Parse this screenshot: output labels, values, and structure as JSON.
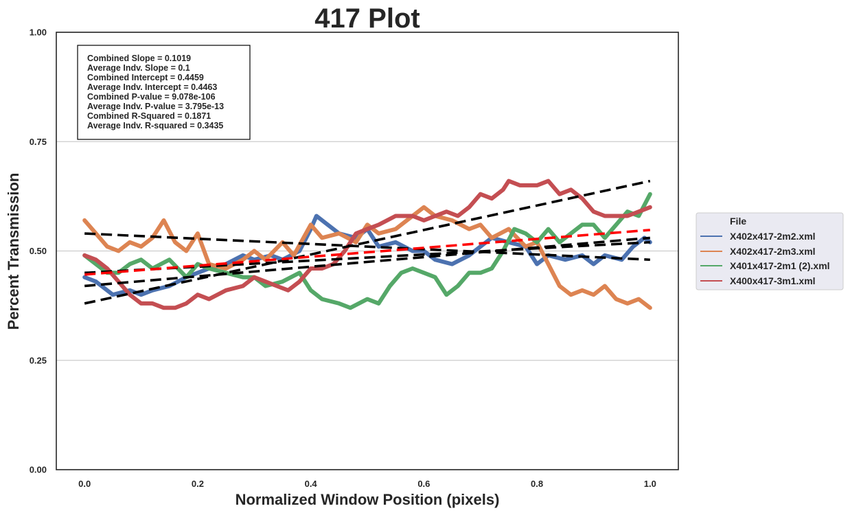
{
  "chart_data": {
    "type": "line",
    "title": "417 Plot",
    "xlabel": "Normalized Window Position (pixels)",
    "ylabel": "Percent Transmission",
    "xlim": [
      -0.05,
      1.05
    ],
    "ylim": [
      0.0,
      1.0
    ],
    "xticks": [
      "0.0",
      "0.2",
      "0.4",
      "0.6",
      "0.8",
      "1.0"
    ],
    "yticks": [
      "0.00",
      "0.25",
      "0.50",
      "0.75",
      "1.00"
    ],
    "grid": "horizontal",
    "legend": {
      "title": "File",
      "placement": "right"
    },
    "stats": [
      "Combined Slope = 0.1019",
      "Average Indv. Slope = 0.1",
      "Combined Intercept = 0.4459",
      "Average Indv. Intercept = 0.4463",
      "Combined P-value = 9.078e-106",
      "Average Indv. P-value = 3.795e-13",
      "Combined R-Squared = 0.1871",
      "Average Indv. R-squared = 0.3435"
    ],
    "series": [
      {
        "name": "X402x417-2m2.xml",
        "color": "#4c72b0",
        "x": [
          0.0,
          0.02,
          0.05,
          0.08,
          0.1,
          0.12,
          0.15,
          0.18,
          0.2,
          0.22,
          0.25,
          0.28,
          0.3,
          0.33,
          0.35,
          0.38,
          0.4,
          0.41,
          0.43,
          0.45,
          0.48,
          0.5,
          0.52,
          0.55,
          0.58,
          0.6,
          0.62,
          0.65,
          0.68,
          0.7,
          0.72,
          0.75,
          0.78,
          0.8,
          0.82,
          0.85,
          0.88,
          0.9,
          0.92,
          0.95,
          0.97,
          0.99,
          1.0
        ],
        "y": [
          0.44,
          0.43,
          0.4,
          0.41,
          0.4,
          0.41,
          0.42,
          0.44,
          0.45,
          0.46,
          0.47,
          0.49,
          0.48,
          0.49,
          0.48,
          0.5,
          0.55,
          0.58,
          0.56,
          0.54,
          0.53,
          0.55,
          0.51,
          0.52,
          0.5,
          0.5,
          0.48,
          0.47,
          0.49,
          0.51,
          0.53,
          0.52,
          0.51,
          0.47,
          0.49,
          0.48,
          0.49,
          0.47,
          0.49,
          0.48,
          0.51,
          0.53,
          0.52
        ]
      },
      {
        "name": "X402x417-2m3.xml",
        "color": "#dd8452",
        "x": [
          0.0,
          0.02,
          0.04,
          0.06,
          0.08,
          0.1,
          0.12,
          0.14,
          0.16,
          0.18,
          0.2,
          0.22,
          0.25,
          0.28,
          0.3,
          0.32,
          0.35,
          0.37,
          0.4,
          0.42,
          0.45,
          0.48,
          0.5,
          0.52,
          0.55,
          0.58,
          0.6,
          0.62,
          0.65,
          0.68,
          0.7,
          0.72,
          0.75,
          0.78,
          0.8,
          0.82,
          0.84,
          0.86,
          0.88,
          0.9,
          0.92,
          0.94,
          0.96,
          0.98,
          1.0
        ],
        "y": [
          0.57,
          0.54,
          0.51,
          0.5,
          0.52,
          0.51,
          0.53,
          0.57,
          0.52,
          0.5,
          0.54,
          0.47,
          0.46,
          0.48,
          0.5,
          0.48,
          0.52,
          0.49,
          0.56,
          0.53,
          0.54,
          0.52,
          0.56,
          0.54,
          0.55,
          0.58,
          0.6,
          0.58,
          0.57,
          0.55,
          0.56,
          0.53,
          0.55,
          0.51,
          0.52,
          0.47,
          0.42,
          0.4,
          0.41,
          0.4,
          0.42,
          0.39,
          0.38,
          0.39,
          0.37
        ]
      },
      {
        "name": "X401x417-2m1 (2).xml",
        "color": "#55a868",
        "x": [
          0.0,
          0.02,
          0.04,
          0.06,
          0.08,
          0.1,
          0.12,
          0.15,
          0.18,
          0.2,
          0.22,
          0.25,
          0.28,
          0.3,
          0.32,
          0.35,
          0.38,
          0.4,
          0.42,
          0.45,
          0.47,
          0.5,
          0.52,
          0.54,
          0.56,
          0.58,
          0.6,
          0.62,
          0.64,
          0.66,
          0.68,
          0.7,
          0.72,
          0.74,
          0.76,
          0.78,
          0.8,
          0.82,
          0.84,
          0.86,
          0.88,
          0.9,
          0.92,
          0.94,
          0.96,
          0.98,
          1.0
        ],
        "y": [
          0.49,
          0.47,
          0.45,
          0.45,
          0.47,
          0.48,
          0.46,
          0.48,
          0.44,
          0.47,
          0.46,
          0.45,
          0.44,
          0.44,
          0.42,
          0.43,
          0.45,
          0.41,
          0.39,
          0.38,
          0.37,
          0.39,
          0.38,
          0.42,
          0.45,
          0.46,
          0.45,
          0.44,
          0.4,
          0.42,
          0.45,
          0.45,
          0.46,
          0.5,
          0.55,
          0.54,
          0.52,
          0.55,
          0.52,
          0.54,
          0.56,
          0.56,
          0.53,
          0.56,
          0.59,
          0.58,
          0.63
        ]
      },
      {
        "name": "X400x417-3m1.xml",
        "color": "#c44e52",
        "x": [
          0.0,
          0.02,
          0.04,
          0.06,
          0.08,
          0.1,
          0.12,
          0.14,
          0.16,
          0.18,
          0.2,
          0.22,
          0.25,
          0.28,
          0.3,
          0.32,
          0.34,
          0.36,
          0.38,
          0.4,
          0.42,
          0.44,
          0.46,
          0.48,
          0.5,
          0.52,
          0.55,
          0.58,
          0.6,
          0.62,
          0.64,
          0.66,
          0.68,
          0.7,
          0.72,
          0.74,
          0.75,
          0.77,
          0.8,
          0.82,
          0.84,
          0.86,
          0.88,
          0.9,
          0.92,
          0.94,
          0.96,
          0.98,
          1.0
        ],
        "y": [
          0.49,
          0.48,
          0.46,
          0.43,
          0.4,
          0.38,
          0.38,
          0.37,
          0.37,
          0.38,
          0.4,
          0.39,
          0.41,
          0.42,
          0.44,
          0.43,
          0.42,
          0.41,
          0.43,
          0.46,
          0.46,
          0.47,
          0.5,
          0.54,
          0.55,
          0.56,
          0.58,
          0.58,
          0.57,
          0.58,
          0.59,
          0.58,
          0.6,
          0.63,
          0.62,
          0.64,
          0.66,
          0.65,
          0.65,
          0.66,
          0.63,
          0.64,
          0.62,
          0.59,
          0.58,
          0.58,
          0.58,
          0.59,
          0.6
        ]
      }
    ],
    "fit_lines": [
      {
        "color": "#000000",
        "x": [
          0.0,
          1.0
        ],
        "y": [
          0.38,
          0.66
        ]
      },
      {
        "color": "#000000",
        "x": [
          0.0,
          1.0
        ],
        "y": [
          0.54,
          0.48
        ]
      },
      {
        "color": "#000000",
        "x": [
          0.0,
          1.0
        ],
        "y": [
          0.45,
          0.52
        ]
      },
      {
        "color": "#000000",
        "x": [
          0.0,
          1.0
        ],
        "y": [
          0.42,
          0.53
        ]
      },
      {
        "color": "#ff0000",
        "x": [
          0.0,
          1.0
        ],
        "y": [
          0.446,
          0.548
        ]
      }
    ]
  }
}
